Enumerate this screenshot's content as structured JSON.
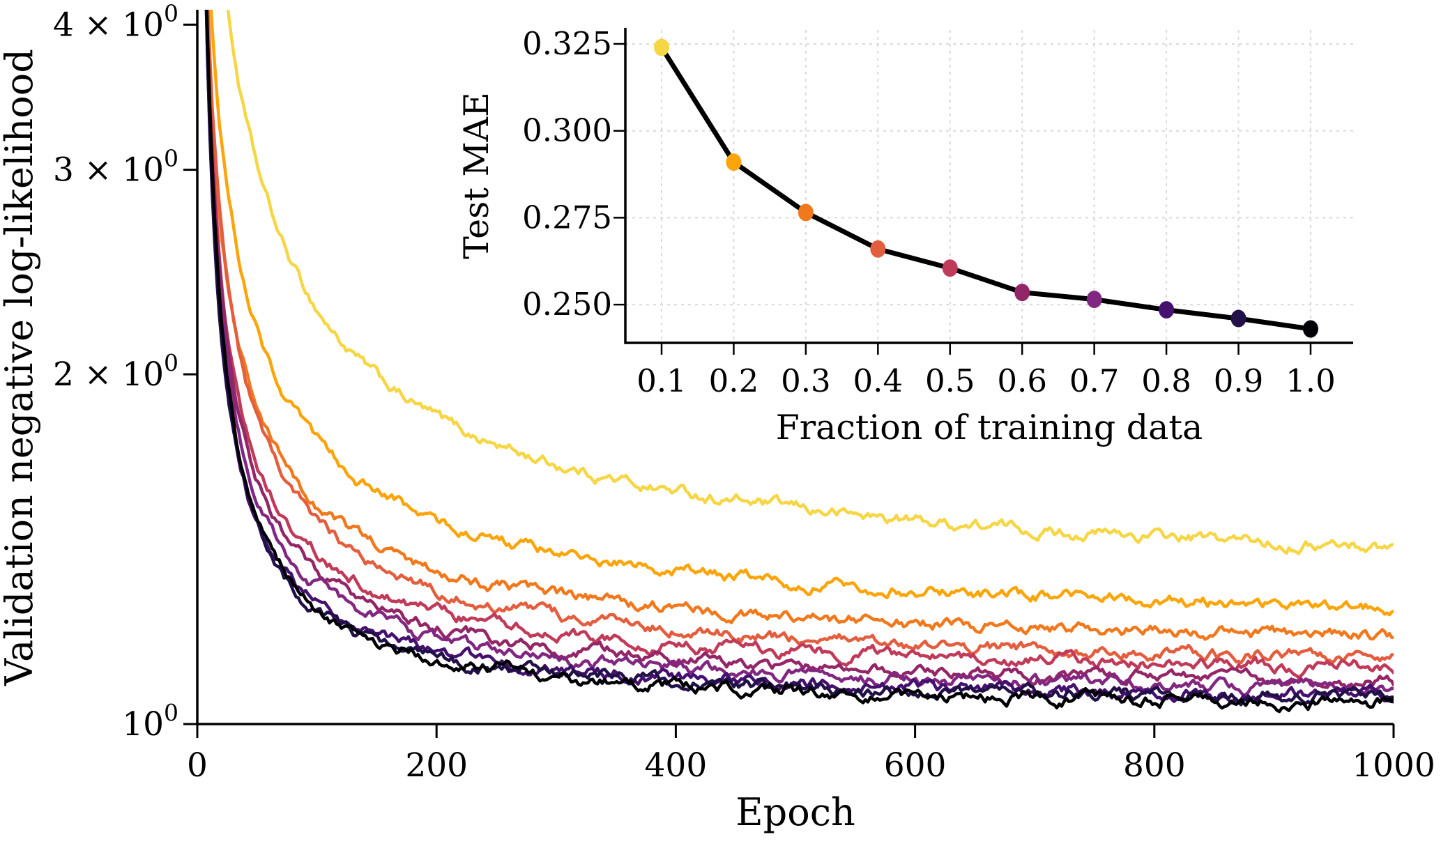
{
  "figure": {
    "background": "#ffffff",
    "axis_color": "#000000",
    "grid_color": "#d9d9d9",
    "text_color": "#000000"
  },
  "chart_data": [
    {
      "type": "line",
      "id": "main-loss-curves",
      "title": "",
      "xlabel": "Epoch",
      "ylabel": "Validation negative log-likelihood",
      "x_range": [
        0,
        1000
      ],
      "y_scale": "log",
      "y_range": [
        1.0,
        4.13
      ],
      "grid": false,
      "x_ticks": [
        {
          "value": 0,
          "label": "0"
        },
        {
          "value": 200,
          "label": "200"
        },
        {
          "value": 400,
          "label": "400"
        },
        {
          "value": 600,
          "label": "600"
        },
        {
          "value": 800,
          "label": "800"
        },
        {
          "value": 1000,
          "label": "1000"
        }
      ],
      "y_ticks": [
        {
          "value": 1,
          "prefix": "10",
          "sup": "0"
        },
        {
          "value": 2,
          "prefix": "2 × 10",
          "sup": "0"
        },
        {
          "value": 3,
          "prefix": "3 × 10",
          "sup": "0"
        },
        {
          "value": 4,
          "prefix": "4 × 10",
          "sup": "0"
        }
      ],
      "series_note": "one noisy decaying curve per training-data fraction; colors match inset markers; yellow (0.1) highest, black (1.0) lowest",
      "series": [
        {
          "name": "fraction 0.1",
          "fraction": 0.1,
          "color": "#f6d644",
          "nll_epoch400": 1.585,
          "nll_epoch1000": 1.42
        },
        {
          "name": "fraction 0.2",
          "fraction": 0.2,
          "color": "#fca50a",
          "nll_epoch400": 1.352,
          "nll_epoch1000": 1.26
        },
        {
          "name": "fraction 0.3",
          "fraction": 0.3,
          "color": "#f1791d",
          "nll_epoch400": 1.254,
          "nll_epoch1000": 1.19
        },
        {
          "name": "fraction 0.4",
          "fraction": 0.4,
          "color": "#e35e3e",
          "nll_epoch400": 1.203,
          "nll_epoch1000": 1.14
        },
        {
          "name": "fraction 0.5",
          "fraction": 0.5,
          "color": "#c03a59",
          "nll_epoch400": 1.167,
          "nll_epoch1000": 1.118
        },
        {
          "name": "fraction 0.6",
          "fraction": 0.6,
          "color": "#932667",
          "nll_epoch400": 1.134,
          "nll_epoch1000": 1.089
        },
        {
          "name": "fraction 0.7",
          "fraction": 0.7,
          "color": "#822781",
          "nll_epoch400": 1.111,
          "nll_epoch1000": 1.07
        },
        {
          "name": "fraction 0.8",
          "fraction": 0.8,
          "color": "#45106e",
          "nll_epoch400": 1.092,
          "nll_epoch1000": 1.06
        },
        {
          "name": "fraction 0.9",
          "fraction": 0.9,
          "color": "#211148",
          "nll_epoch400": 1.082,
          "nll_epoch1000": 1.051
        },
        {
          "name": "fraction 1.0",
          "fraction": 1.0,
          "color": "#000004",
          "nll_epoch400": 1.074,
          "nll_epoch1000": 1.041
        }
      ]
    },
    {
      "type": "line",
      "id": "inset-test-mae",
      "title": "",
      "xlabel": "Fraction of training data",
      "ylabel": "Test MAE",
      "grid": true,
      "line_color": "#000000",
      "x": [
        0.1,
        0.2,
        0.3,
        0.4,
        0.5,
        0.6,
        0.7,
        0.8,
        0.9,
        1.0
      ],
      "y": [
        0.324,
        0.291,
        0.2765,
        0.266,
        0.2605,
        0.2535,
        0.2515,
        0.2485,
        0.246,
        0.243
      ],
      "marker_colors": [
        "#f6d644",
        "#fca50a",
        "#f1791d",
        "#e35e3e",
        "#c03a59",
        "#932667",
        "#822781",
        "#45106e",
        "#211148",
        "#000004"
      ],
      "x_tick_labels": [
        "0.1",
        "0.2",
        "0.3",
        "0.4",
        "0.5",
        "0.6",
        "0.7",
        "0.8",
        "0.9",
        "1.0"
      ],
      "y_ticks": [
        {
          "value": 0.25,
          "label": "0.250"
        },
        {
          "value": 0.275,
          "label": "0.275"
        },
        {
          "value": 0.3,
          "label": "0.300"
        },
        {
          "value": 0.325,
          "label": "0.325"
        }
      ]
    }
  ]
}
